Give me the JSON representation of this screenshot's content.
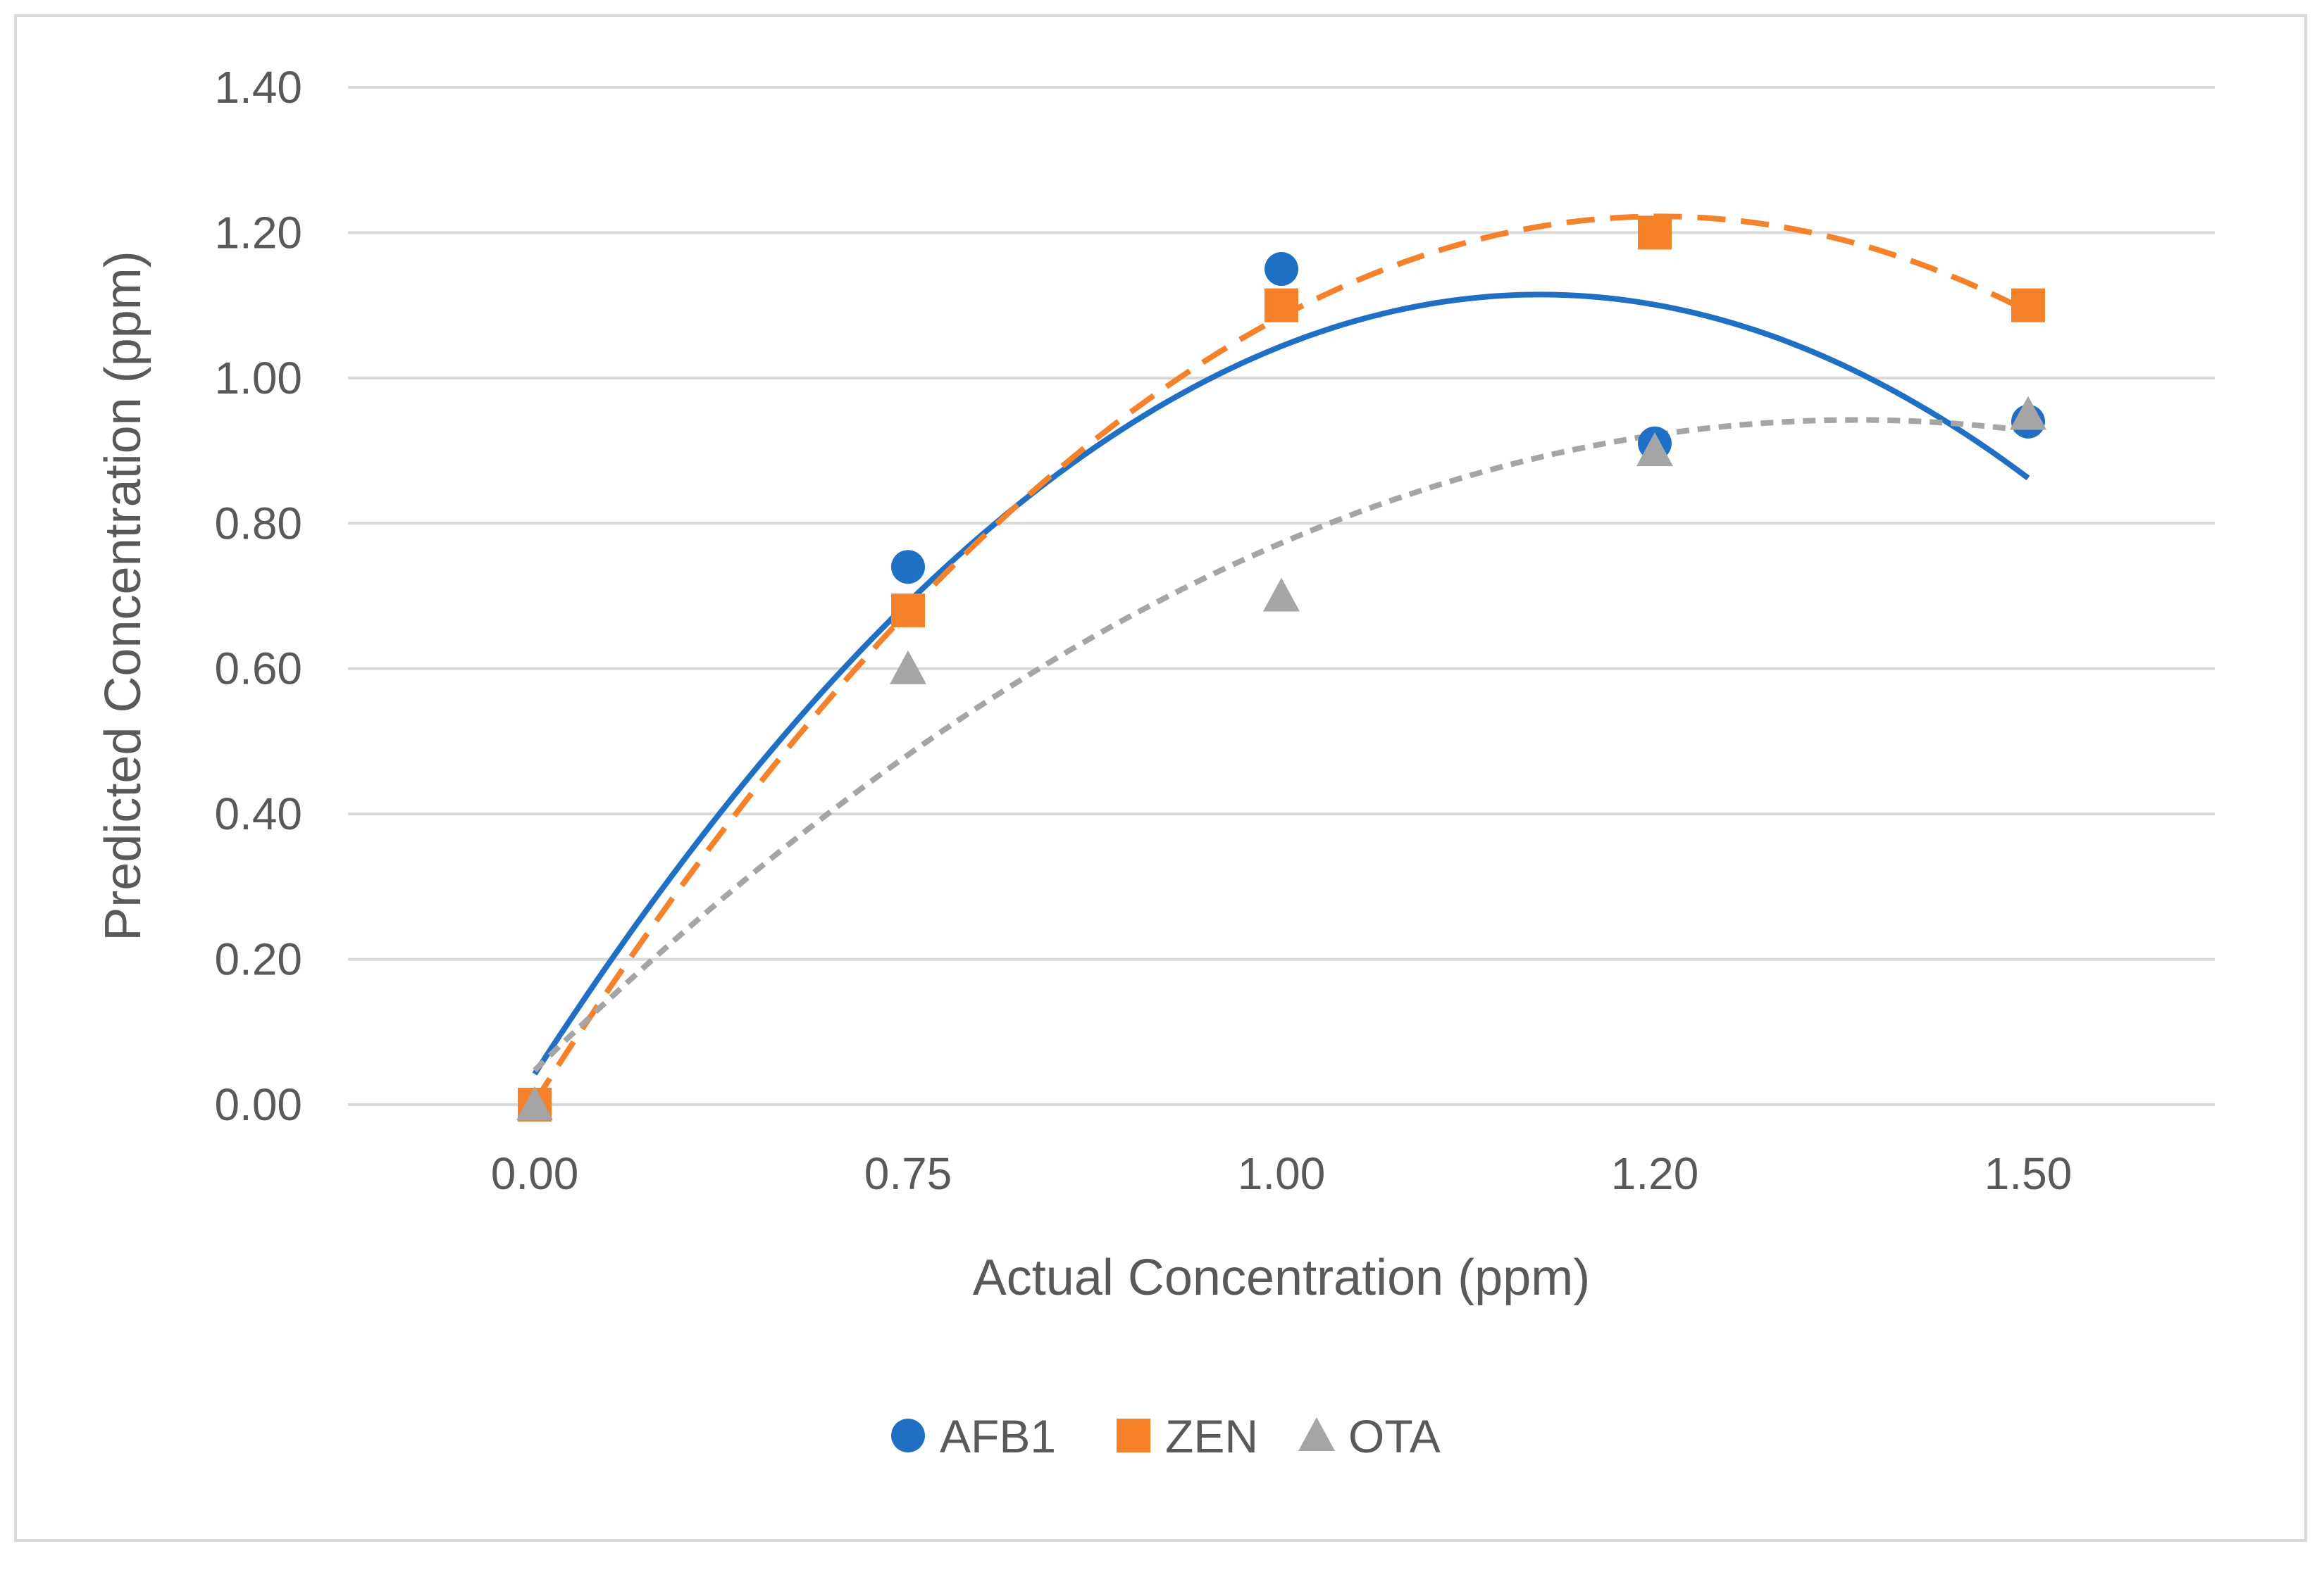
{
  "chart_data": {
    "type": "scatter",
    "title": "",
    "xlabel": "Actual Concentration (ppm)",
    "ylabel": "Predicted Concentration (ppm)",
    "categories": [
      "0.00",
      "0.75",
      "1.00",
      "1.20",
      "1.50"
    ],
    "ylim": [
      0,
      1.4
    ],
    "yticks": [
      "0.00",
      "0.20",
      "0.40",
      "0.60",
      "0.80",
      "1.00",
      "1.20",
      "1.40"
    ],
    "grid": "horizontal",
    "legend_position": "bottom",
    "series": [
      {
        "name": "AFB1",
        "marker": "circle",
        "color": "#1f6fc5",
        "trendline": "solid",
        "values": [
          0.0,
          0.74,
          1.15,
          0.91,
          0.94
        ]
      },
      {
        "name": "ZEN",
        "marker": "square",
        "color": "#f5822a",
        "trendline": "dashed",
        "values": [
          0.0,
          0.68,
          1.1,
          1.2,
          1.1
        ]
      },
      {
        "name": "OTA",
        "marker": "triangle",
        "color": "#a5a5a5",
        "trendline": "dotted",
        "values": [
          0.0,
          0.6,
          0.7,
          0.9,
          0.95
        ]
      }
    ]
  }
}
